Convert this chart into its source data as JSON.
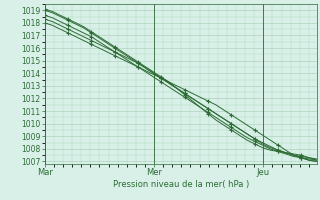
{
  "title": "",
  "xlabel": "Pression niveau de la mer( hPa )",
  "ylabel": "",
  "bg_color": "#d8f0e8",
  "grid_color": "#b0d4bc",
  "line_color": "#2d6b35",
  "ylim": [
    1006.8,
    1019.5
  ],
  "yticks": [
    1007,
    1008,
    1009,
    1010,
    1011,
    1012,
    1013,
    1014,
    1015,
    1016,
    1017,
    1018,
    1019
  ],
  "day_labels": [
    "Mar",
    "Mer",
    "Jeu"
  ],
  "day_positions": [
    0,
    96,
    192
  ],
  "xlim": [
    0,
    239
  ],
  "lines": [
    [
      1018.0,
      1017.8,
      1017.5,
      1017.2,
      1016.9,
      1016.6,
      1016.3,
      1016.0,
      1015.7,
      1015.4,
      1015.1,
      1014.8,
      1014.5,
      1014.2,
      1013.9,
      1013.6,
      1013.3,
      1013.0,
      1012.7,
      1012.4,
      1012.1,
      1011.8,
      1011.5,
      1011.1,
      1010.7,
      1010.3,
      1009.9,
      1009.5,
      1009.1,
      1008.7,
      1008.3,
      1007.9,
      1007.5,
      1007.3,
      1007.1,
      1007.0
    ],
    [
      1018.3,
      1018.1,
      1017.8,
      1017.5,
      1017.2,
      1016.9,
      1016.6,
      1016.3,
      1016.0,
      1015.7,
      1015.4,
      1015.1,
      1014.8,
      1014.4,
      1014.0,
      1013.6,
      1013.2,
      1012.8,
      1012.4,
      1012.0,
      1011.6,
      1011.2,
      1010.8,
      1010.4,
      1010.0,
      1009.6,
      1009.2,
      1008.8,
      1008.4,
      1008.1,
      1007.9,
      1007.7,
      1007.5,
      1007.3,
      1007.1,
      1007.0
    ],
    [
      1018.6,
      1018.4,
      1018.1,
      1017.8,
      1017.5,
      1017.2,
      1016.9,
      1016.5,
      1016.1,
      1015.7,
      1015.3,
      1014.9,
      1014.5,
      1014.1,
      1013.7,
      1013.3,
      1012.9,
      1012.5,
      1012.1,
      1011.7,
      1011.3,
      1010.9,
      1010.5,
      1010.1,
      1009.7,
      1009.3,
      1008.9,
      1008.6,
      1008.3,
      1008.0,
      1007.8,
      1007.6,
      1007.4,
      1007.3,
      1007.2,
      1007.1
    ],
    [
      1019.0,
      1018.8,
      1018.5,
      1018.2,
      1017.9,
      1017.6,
      1017.2,
      1016.8,
      1016.4,
      1016.0,
      1015.6,
      1015.2,
      1014.8,
      1014.4,
      1014.0,
      1013.6,
      1013.2,
      1012.8,
      1012.4,
      1012.0,
      1011.6,
      1011.2,
      1010.8,
      1010.4,
      1010.0,
      1009.6,
      1009.2,
      1008.8,
      1008.5,
      1008.2,
      1007.9,
      1007.7,
      1007.5,
      1007.4,
      1007.3,
      1007.2
    ],
    [
      1019.1,
      1018.9,
      1018.6,
      1018.3,
      1018.0,
      1017.7,
      1017.3,
      1016.9,
      1016.5,
      1016.1,
      1015.7,
      1015.3,
      1014.9,
      1014.5,
      1014.1,
      1013.7,
      1013.3,
      1012.8,
      1012.3,
      1011.8,
      1011.3,
      1010.8,
      1010.3,
      1009.9,
      1009.5,
      1009.1,
      1008.7,
      1008.4,
      1008.1,
      1007.9,
      1007.8,
      1007.7,
      1007.6,
      1007.5,
      1007.3,
      1007.1
    ]
  ]
}
